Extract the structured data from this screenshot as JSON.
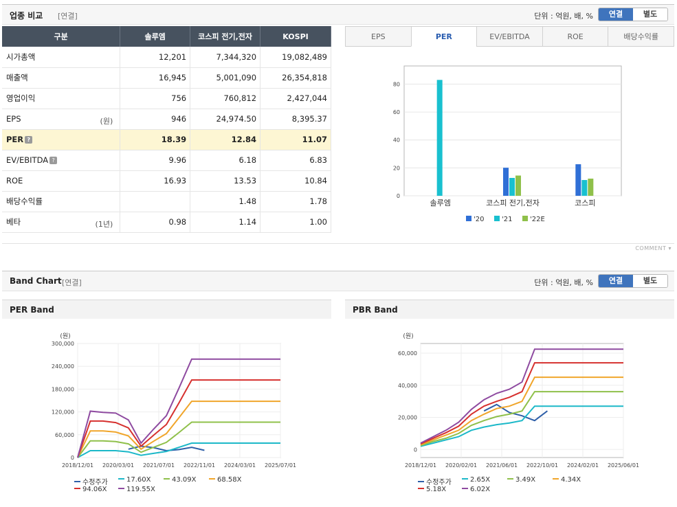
{
  "industry": {
    "title": "업종 비교",
    "sub": "[연결]",
    "unit": "단위 : 억원, 배, %",
    "toggle": {
      "consolidated": "연결",
      "separate": "별도"
    }
  },
  "table": {
    "headers": [
      "구분",
      "솔루엠",
      "코스피 전기,전자",
      "KOSPI"
    ],
    "rows": [
      {
        "label": "시가총액",
        "unit": "",
        "q": false,
        "values": [
          "12,201",
          "7,344,320",
          "19,082,489"
        ]
      },
      {
        "label": "매출액",
        "unit": "",
        "q": false,
        "values": [
          "16,945",
          "5,001,090",
          "26,354,818"
        ]
      },
      {
        "label": "영업이익",
        "unit": "",
        "q": false,
        "values": [
          "756",
          "760,812",
          "2,427,044"
        ]
      },
      {
        "label": "EPS",
        "unit": "(원)",
        "q": false,
        "values": [
          "946",
          "24,974.50",
          "8,395.37"
        ]
      },
      {
        "label": "PER",
        "unit": "",
        "q": true,
        "values": [
          "18.39",
          "12.84",
          "11.07"
        ]
      },
      {
        "label": "EV/EBITDA",
        "unit": "",
        "q": true,
        "values": [
          "9.96",
          "6.18",
          "6.83"
        ]
      },
      {
        "label": "ROE",
        "unit": "",
        "q": false,
        "values": [
          "16.93",
          "13.53",
          "10.84"
        ]
      },
      {
        "label": "배당수익률",
        "unit": "",
        "q": false,
        "values": [
          "",
          "1.48",
          "1.78"
        ]
      },
      {
        "label": "베타",
        "unit": "(1년)",
        "q": false,
        "values": [
          "0.98",
          "1.14",
          "1.00"
        ]
      }
    ]
  },
  "tabs": [
    "EPS",
    "PER",
    "EV/EBITDA",
    "ROE",
    "배당수익률"
  ],
  "comment_label": "COMMENT",
  "band": {
    "title": "Band Chart",
    "sub": "[연결]",
    "unit": "단위 : 억원, 배, %",
    "toggle": {
      "consolidated": "연결",
      "separate": "별도"
    }
  },
  "chart_data": [
    {
      "type": "bar",
      "categories": [
        "솔루엠",
        "코스피 전기,전자",
        "코스피"
      ],
      "series": [
        {
          "name": "'20",
          "color": "#2f6fd6",
          "values": [
            null,
            20.1,
            22.6
          ]
        },
        {
          "name": "'21",
          "color": "#19c0cf",
          "values": [
            83.0,
            12.8,
            11.3
          ]
        },
        {
          "name": "'22E",
          "color": "#8fc04a",
          "values": [
            null,
            14.5,
            12.3
          ]
        }
      ],
      "yticks": [
        "0",
        "20",
        "40",
        "60",
        "80"
      ],
      "ylim": [
        0,
        93
      ]
    },
    {
      "type": "line",
      "title": "PER Band",
      "ylabel": "(원)",
      "xticks": [
        "2018/12/01",
        "2020/03/01",
        "2021/07/01",
        "2022/11/01",
        "2024/03/01",
        "2025/07/01"
      ],
      "yticks": [
        "0",
        "60,000",
        "120,000",
        "180,000",
        "240,000",
        "300,000"
      ],
      "ylim": [
        0,
        300000
      ],
      "x": [
        0,
        1,
        2,
        3,
        4,
        5,
        6,
        7,
        8,
        9,
        10,
        11,
        12,
        13,
        14,
        15,
        16
      ],
      "series": [
        {
          "name": "수정주가",
          "color": "#2e5fa8",
          "values": [
            null,
            null,
            null,
            null,
            22000,
            30000,
            26000,
            18000,
            21000,
            27000,
            19000,
            null,
            null,
            null,
            null,
            null,
            null
          ]
        },
        {
          "name": "17.60X",
          "color": "#1bb8c8",
          "values": [
            0,
            18000,
            18000,
            18000,
            15000,
            6000,
            11000,
            16000,
            27000,
            38000,
            38000,
            38000,
            38000,
            38000,
            38000,
            38000,
            38000
          ]
        },
        {
          "name": "43.09X",
          "color": "#8fc04a",
          "values": [
            0,
            44000,
            44000,
            42000,
            36000,
            14000,
            27000,
            40000,
            66000,
            93000,
            93000,
            93000,
            93000,
            93000,
            93000,
            93000,
            93000
          ]
        },
        {
          "name": "68.58X",
          "color": "#f0a52a",
          "values": [
            0,
            70000,
            70000,
            67000,
            57000,
            22000,
            43000,
            63000,
            105000,
            148000,
            148000,
            148000,
            148000,
            148000,
            148000,
            148000,
            148000
          ]
        },
        {
          "name": "94.06X",
          "color": "#d6302e",
          "values": [
            0,
            96000,
            96000,
            92000,
            78000,
            30000,
            59000,
            87000,
            144000,
            204000,
            204000,
            204000,
            204000,
            204000,
            204000,
            204000,
            204000
          ]
        },
        {
          "name": "119.55X",
          "color": "#8e4aa0",
          "values": [
            0,
            122000,
            119000,
            117000,
            99000,
            38000,
            75000,
            110000,
            183000,
            259000,
            259000,
            259000,
            259000,
            259000,
            259000,
            259000,
            259000
          ]
        }
      ]
    },
    {
      "type": "line",
      "title": "PBR Band",
      "ylabel": "(원)",
      "xticks": [
        "2018/12/01",
        "2020/02/01",
        "2021/06/01",
        "2022/10/01",
        "2024/02/01",
        "2025/06/01"
      ],
      "yticks": [
        "0",
        "20,000",
        "40,000",
        "60,000"
      ],
      "ylim": [
        -5000,
        66000
      ],
      "x": [
        0,
        1,
        2,
        3,
        4,
        5,
        6,
        7,
        8,
        9,
        10,
        11,
        12,
        13,
        14,
        15,
        16
      ],
      "series": [
        {
          "name": "수정주가",
          "color": "#2e5fa8",
          "values": [
            null,
            null,
            null,
            null,
            null,
            24000,
            28000,
            23000,
            21000,
            18000,
            24000,
            null,
            null,
            null,
            null,
            null,
            null
          ]
        },
        {
          "name": "2.65X",
          "color": "#1bb8c8",
          "values": [
            2000,
            4000,
            6000,
            8000,
            12000,
            14000,
            15500,
            16500,
            18000,
            27000,
            27000,
            27000,
            27000,
            27000,
            27000,
            27000,
            27000
          ]
        },
        {
          "name": "3.49X",
          "color": "#8fc04a",
          "values": [
            2500,
            5000,
            7000,
            10000,
            15000,
            18000,
            20500,
            22000,
            24000,
            36000,
            36000,
            36000,
            36000,
            36000,
            36000,
            36000,
            36000
          ]
        },
        {
          "name": "4.34X",
          "color": "#f0a52a",
          "values": [
            3000,
            6000,
            9000,
            12000,
            18000,
            22000,
            25500,
            27000,
            30000,
            45000,
            45000,
            45000,
            45000,
            45000,
            45000,
            45000,
            45000
          ]
        },
        {
          "name": "5.18X",
          "color": "#d6302e",
          "values": [
            3500,
            7000,
            10500,
            14500,
            22000,
            27000,
            30000,
            32500,
            36000,
            54000,
            54000,
            54000,
            54000,
            54000,
            54000,
            54000,
            54000
          ]
        },
        {
          "name": "6.02X",
          "color": "#8e4aa0",
          "values": [
            4000,
            8000,
            12000,
            17000,
            25000,
            31000,
            35000,
            37500,
            42000,
            62500,
            62500,
            62500,
            62500,
            62500,
            62500,
            62500,
            62500
          ]
        }
      ]
    }
  ]
}
